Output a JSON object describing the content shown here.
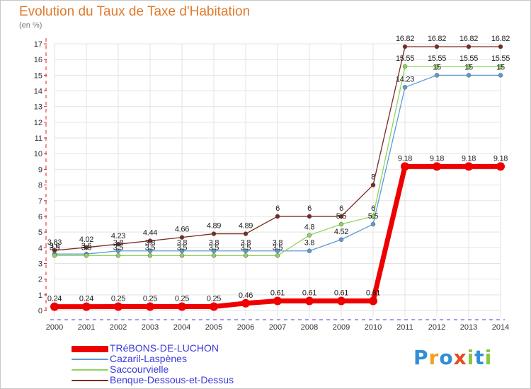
{
  "title": "Evolution du Taux de Taxe d'Habitation",
  "unit": "(en %)",
  "brand": {
    "letters": [
      "P",
      "r",
      "o",
      "x",
      "i",
      "t",
      "i"
    ],
    "colors": [
      "#2f8fd6",
      "#f0a020",
      "#2f8fd6",
      "#e05020",
      "#8bc53f",
      "#2f8fd6",
      "#8bc53f"
    ]
  },
  "legend": [
    {
      "label": "TRéBONS-DE-LUCHON",
      "color": "#ee0000"
    },
    {
      "label": "Cazaril-Laspènes",
      "color": "#5b9bd5"
    },
    {
      "label": "Saccourvielle",
      "color": "#8fd45a"
    },
    {
      "label": "Benque-Dessous-et-Dessus",
      "color": "#7a2a1f"
    }
  ],
  "chart_data": {
    "type": "line",
    "x": [
      2000,
      2001,
      2002,
      2003,
      2004,
      2005,
      2006,
      2007,
      2008,
      2009,
      2010,
      2011,
      2012,
      2013,
      2014
    ],
    "ylim": [
      0,
      17
    ],
    "yticks": [
      0,
      1,
      2,
      3,
      4,
      5,
      6,
      7,
      8,
      9,
      10,
      11,
      12,
      13,
      14,
      15,
      16,
      17
    ],
    "grid": true,
    "series": [
      {
        "name": "TRéBONS-DE-LUCHON",
        "color": "#ee0000",
        "width": 7,
        "values": [
          0.24,
          0.24,
          0.25,
          0.25,
          0.25,
          0.25,
          0.46,
          0.61,
          0.61,
          0.61,
          0.61,
          9.18,
          9.18,
          9.18,
          9.18
        ],
        "labels": [
          "0.24",
          "0.24",
          "0.25",
          "0.25",
          "0.25",
          "0.25",
          "0.46",
          "0.61",
          "0.61",
          "0.61",
          "0.61",
          "9.18",
          "9.18",
          "9.18",
          "9.18"
        ]
      },
      {
        "name": "Cazaril-Laspènes",
        "color": "#5b9bd5",
        "width": 1.3,
        "values": [
          3.6,
          3.6,
          3.8,
          3.8,
          3.8,
          3.8,
          3.8,
          3.8,
          3.8,
          4.52,
          5.5,
          14.23,
          15,
          15,
          15
        ],
        "labels": [
          "3.6",
          "3.6",
          "3.8",
          "3.8",
          "3.8",
          "3.8",
          "3.8",
          "3.8",
          "3.8",
          "4.52",
          "5.5",
          "14.23",
          "15",
          "15",
          "15"
        ]
      },
      {
        "name": "Saccourvielle",
        "color": "#8fd45a",
        "width": 1.3,
        "values": [
          3.5,
          3.5,
          3.5,
          3.5,
          3.5,
          3.5,
          3.5,
          3.5,
          4.8,
          5.5,
          6,
          15.55,
          15.55,
          15.55,
          15.55
        ],
        "labels": [
          "3.5",
          "3.5",
          "3.5",
          "3.5",
          "3.5",
          "3.5",
          "3.5",
          "3.5",
          "4.8",
          "5.5",
          "6",
          "15.55",
          "15.55",
          "15.55",
          "15.55"
        ]
      },
      {
        "name": "Benque-Dessous-et-Dessus",
        "color": "#7a2a1f",
        "width": 1.3,
        "values": [
          3.83,
          4.02,
          4.23,
          4.44,
          4.66,
          4.89,
          4.89,
          6,
          6,
          6,
          8,
          16.82,
          16.82,
          16.82,
          16.82
        ],
        "labels": [
          "3.83",
          "4.02",
          "4.23",
          "4.44",
          "4.66",
          "4.89",
          "4.89",
          "6",
          "6",
          "6",
          "8",
          "16.82",
          "16.82",
          "16.82",
          "16.82"
        ]
      }
    ]
  }
}
